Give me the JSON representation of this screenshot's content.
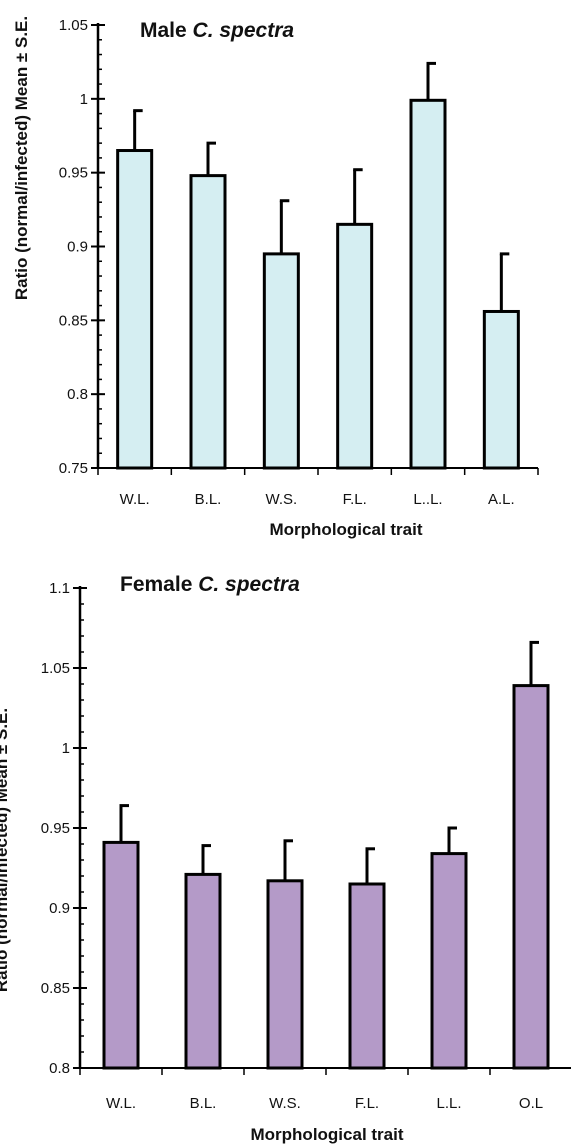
{
  "chart_data": [
    {
      "type": "bar",
      "title": "Male",
      "title_italic": "C. spectra",
      "xlabel": "Morphological trait",
      "ylabel": "Ratio (normal/infected) Mean ± S.E.",
      "categories": [
        "W.L.",
        "B.L.",
        "W.S.",
        "F.L.",
        "L..L.",
        "A.L."
      ],
      "values": [
        0.965,
        0.948,
        0.895,
        0.915,
        0.999,
        0.856
      ],
      "errors": [
        0.027,
        0.022,
        0.036,
        0.037,
        0.025,
        0.039
      ],
      "ylim": [
        0.75,
        1.05
      ],
      "yticks": [
        0.75,
        0.8,
        0.85,
        0.9,
        0.95,
        1,
        1.05
      ],
      "ytick_labels": [
        "0.75",
        "0.8",
        "0.85",
        "0.9",
        "0.95",
        "1",
        "1.05"
      ],
      "bar_color": "#d5eef2",
      "grid": false
    },
    {
      "type": "bar",
      "title": "Female",
      "title_italic": "C. spectra",
      "xlabel": "Morphological trait",
      "ylabel": "Ratio (normal/infected) Mean ± S.E.",
      "categories": [
        "W.L.",
        "B.L.",
        "W.S.",
        "F.L.",
        "L.L.",
        "O.L"
      ],
      "values": [
        0.941,
        0.921,
        0.917,
        0.915,
        0.934,
        1.039
      ],
      "errors": [
        0.023,
        0.018,
        0.025,
        0.022,
        0.016,
        0.027
      ],
      "ylim": [
        0.8,
        1.1
      ],
      "yticks": [
        0.8,
        0.85,
        0.9,
        0.95,
        1,
        1.05,
        1.1
      ],
      "ytick_labels": [
        "0.8",
        "0.85",
        "0.9",
        "0.95",
        "1",
        "1.05",
        "1.1"
      ],
      "bar_color": "#b49ac8",
      "grid": false
    }
  ]
}
